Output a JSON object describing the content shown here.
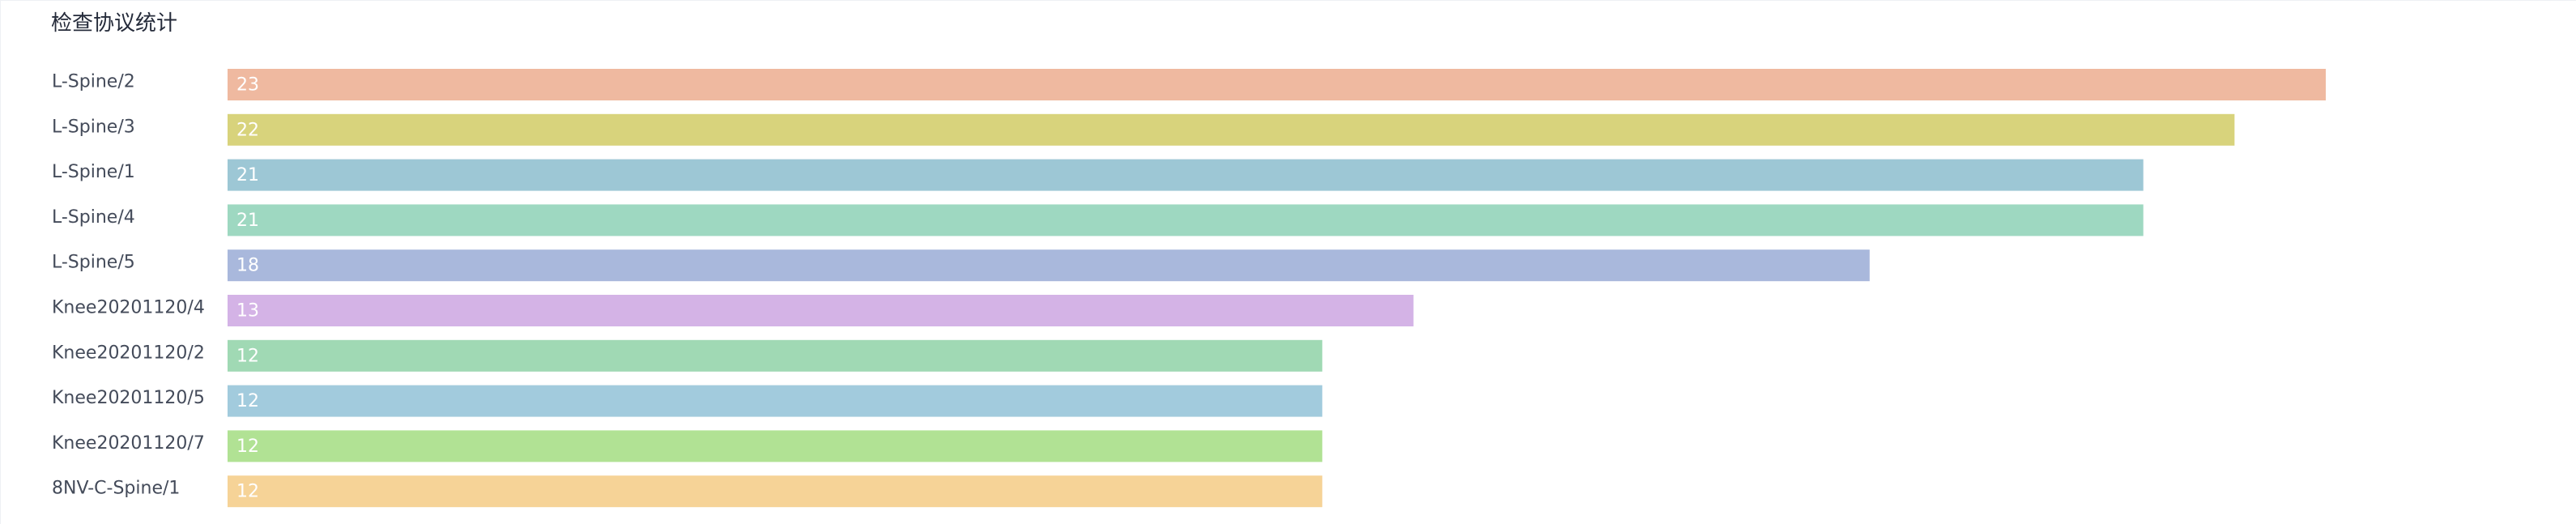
{
  "chart_data": {
    "type": "bar",
    "orientation": "horizontal",
    "title": "检查协议统计",
    "categories": [
      "L-Spine/2",
      "L-Spine/3",
      "L-Spine/1",
      "L-Spine/4",
      "L-Spine/5",
      "Knee20201120/4",
      "Knee20201120/2",
      "Knee20201120/5",
      "Knee20201120/7",
      "8NV-C-Spine/1"
    ],
    "values": [
      23,
      22,
      21,
      21,
      18,
      13,
      12,
      12,
      12,
      12
    ],
    "colors": [
      "#efb9a0",
      "#d8d37c",
      "#9dc7d5",
      "#9ed8c1",
      "#a9b8dc",
      "#d4b3e6",
      "#a0d9b4",
      "#a2cbdd",
      "#b1e294",
      "#f6d397"
    ],
    "xlabel": "",
    "ylabel": "",
    "xlim": [
      0,
      23
    ],
    "grid": false,
    "legend": false,
    "data_labels": "inside-left"
  }
}
